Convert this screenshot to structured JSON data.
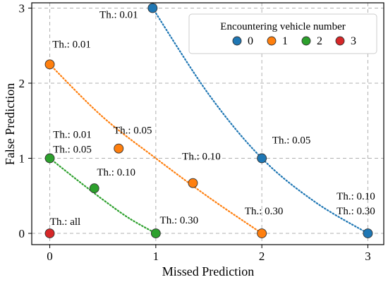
{
  "chart_data": {
    "type": "scatter",
    "title": "",
    "xlabel": "Missed Prediction",
    "ylabel": "False Prediction",
    "xlim": [
      -0.17,
      3.15
    ],
    "ylim": [
      -0.15,
      3.07
    ],
    "xticks": [
      0,
      1,
      2,
      3
    ],
    "yticks": [
      0,
      1,
      2,
      3
    ],
    "grid": true,
    "legend": {
      "title": "Encountering vehicle number",
      "position": "top-right",
      "columns": 4
    },
    "series": [
      {
        "name": "0",
        "color": "#1f77b4",
        "points": [
          {
            "x": 0.97,
            "y": 3.0,
            "label": "Th.: 0.01"
          },
          {
            "x": 2.0,
            "y": 1.0,
            "label": "Th.: 0.05"
          },
          {
            "x": 3.0,
            "y": 0.0,
            "label": "Th.: 0.10\nTh.: 0.30"
          }
        ],
        "curve": [
          [
            0.97,
            3.0
          ],
          [
            1.5,
            1.85
          ],
          [
            2.0,
            1.0
          ],
          [
            2.5,
            0.42
          ],
          [
            3.0,
            0.0
          ]
        ]
      },
      {
        "name": "1",
        "color": "#ff7f0e",
        "points": [
          {
            "x": 0.0,
            "y": 2.25,
            "label": "Th.: 0.01"
          },
          {
            "x": 0.65,
            "y": 1.13,
            "label": "Th.: 0.05"
          },
          {
            "x": 1.35,
            "y": 0.67,
            "label": "Th.: 0.10"
          },
          {
            "x": 2.0,
            "y": 0.0,
            "label": "Th.: 0.30"
          }
        ],
        "curve": [
          [
            0.0,
            2.25
          ],
          [
            0.5,
            1.55
          ],
          [
            1.0,
            1.0
          ],
          [
            1.5,
            0.48
          ],
          [
            2.0,
            0.0
          ]
        ]
      },
      {
        "name": "2",
        "color": "#2ca02c",
        "points": [
          {
            "x": 0.0,
            "y": 1.0,
            "label": "Th.: 0.01\nTh.: 0.05"
          },
          {
            "x": 0.42,
            "y": 0.6,
            "label": "Th.: 0.10"
          },
          {
            "x": 1.0,
            "y": 0.0,
            "label": "Th.: 0.30"
          }
        ],
        "curve": [
          [
            0.0,
            1.0
          ],
          [
            0.25,
            0.72
          ],
          [
            0.5,
            0.45
          ],
          [
            0.75,
            0.2
          ],
          [
            1.0,
            0.0
          ]
        ]
      },
      {
        "name": "3",
        "color": "#d62728",
        "points": [
          {
            "x": 0.0,
            "y": 0.0,
            "label": "Th.: all"
          }
        ],
        "curve": []
      }
    ]
  }
}
